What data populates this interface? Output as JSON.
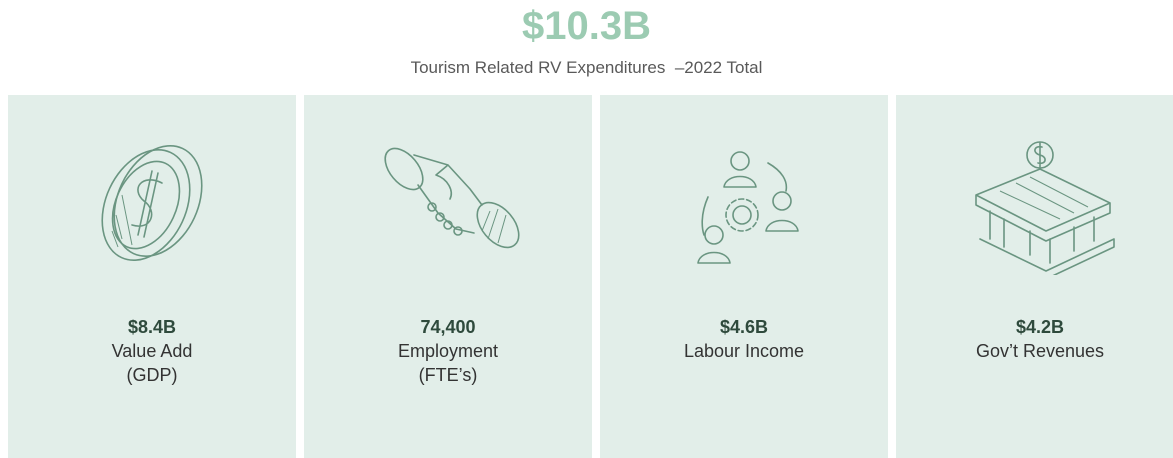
{
  "header": {
    "value": "$10.3B",
    "subtitle": "Tourism Related RV Expenditures  –2022 Total"
  },
  "cards": [
    {
      "value": "$8.4B",
      "label": [
        "Value Add",
        "(GDP)"
      ]
    },
    {
      "value": "74,400",
      "label": [
        "Employment",
        "(FTE’s)"
      ]
    },
    {
      "value": "$4.6B",
      "label": [
        "Labour Income"
      ]
    },
    {
      "value": "$4.2B",
      "label": [
        "Gov’t Revenues"
      ]
    }
  ]
}
